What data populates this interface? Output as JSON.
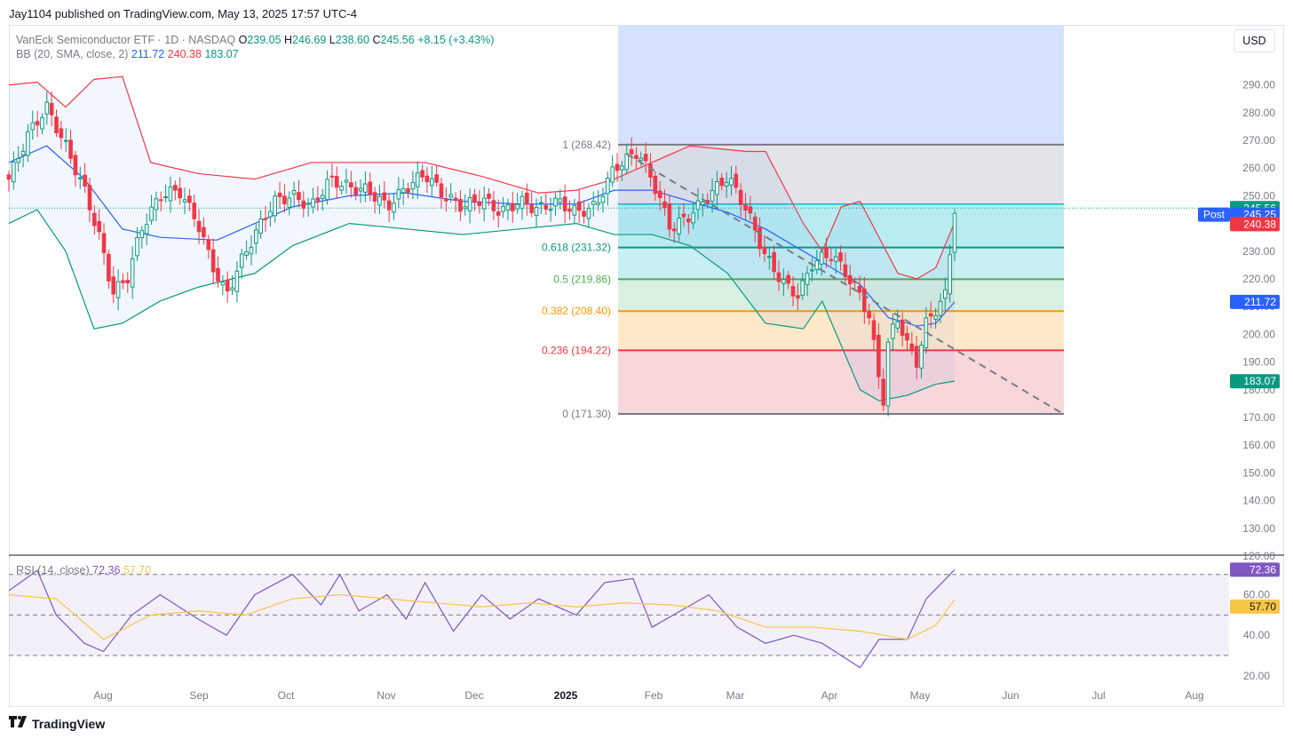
{
  "header": {
    "published": "Jay1104 published on TradingView.com, May 13, 2025 17:57 UTC-4",
    "currency_button": "USD"
  },
  "legend": {
    "symbol": "VanEck Semiconductor ETF · 1D · NASDAQ",
    "open_label": "O",
    "open": "239.05",
    "high_label": "H",
    "high": "246.69",
    "low_label": "L",
    "low": "238.60",
    "close_label": "C",
    "close": "245.56",
    "change": "+8.15 (+3.43%)",
    "bb_label": "BB (20, SMA, close, 2)",
    "bb_basis": "211.72",
    "bb_upper": "240.38",
    "bb_lower": "183.07"
  },
  "rsi_legend": {
    "label": "RSI (14, close)",
    "rsi": "72.36",
    "ma": "57.70"
  },
  "footer": {
    "brand": "TradingView"
  },
  "colors": {
    "up": "#089981",
    "down": "#f23645",
    "bb_basis": "#2962ff",
    "bb_upper": "#f23645",
    "bb_lower": "#089981",
    "rsi": "#7e57c2",
    "rsi_ma": "#f7c548",
    "post": "#2962ff"
  },
  "chart_data": [
    {
      "type": "candlestick",
      "title": "VanEck Semiconductor ETF · 1D · NASDAQ",
      "y_ticks": [
        120,
        130,
        140,
        150,
        160,
        170,
        180,
        190,
        200,
        210,
        220,
        230,
        240,
        250,
        260,
        270,
        280,
        290
      ],
      "ylim": [
        115,
        297
      ],
      "x_ticks": [
        "Aug",
        "Sep",
        "Oct",
        "Nov",
        "Dec",
        "2025",
        "Feb",
        "Mar",
        "Apr",
        "May",
        "Jun",
        "Jul",
        "Aug"
      ],
      "price_badges": [
        {
          "label": "",
          "value": "245.56",
          "color": "#089981"
        },
        {
          "label": "Post",
          "value": "245.25",
          "color": "#2962ff"
        },
        {
          "label": "",
          "value": "240.38",
          "color": "#f23645"
        },
        {
          "label": "",
          "value": "211.72",
          "color": "#2962ff"
        },
        {
          "label": "",
          "value": "183.07",
          "color": "#089981"
        }
      ],
      "fibonacci": [
        {
          "ratio": "1",
          "price": 268.42,
          "label": "1 (268.42)",
          "color": "#787b86"
        },
        {
          "ratio": "0.618",
          "price": 231.32,
          "label": "0.618 (231.32)",
          "color": "#089981"
        },
        {
          "ratio": "0.5",
          "price": 219.86,
          "label": "0.5 (219.86)",
          "color": "#4caf50"
        },
        {
          "ratio": "0.382",
          "price": 208.4,
          "label": "0.382 (208.40)",
          "color": "#ff9800"
        },
        {
          "ratio": "0.236",
          "price": 194.22,
          "label": "0.236 (194.22)",
          "color": "#f23645"
        },
        {
          "ratio": "0",
          "price": 171.3,
          "label": "0 (171.30)",
          "color": "#787b86"
        }
      ],
      "price_path": [
        [
          0,
          256
        ],
        [
          0.02,
          272
        ],
        [
          0.04,
          282
        ],
        [
          0.06,
          268
        ],
        [
          0.08,
          252
        ],
        [
          0.095,
          236
        ],
        [
          0.11,
          215
        ],
        [
          0.125,
          220
        ],
        [
          0.14,
          238
        ],
        [
          0.16,
          250
        ],
        [
          0.18,
          252
        ],
        [
          0.2,
          240
        ],
        [
          0.215,
          225
        ],
        [
          0.23,
          214
        ],
        [
          0.245,
          226
        ],
        [
          0.26,
          236
        ],
        [
          0.28,
          248
        ],
        [
          0.3,
          250
        ],
        [
          0.32,
          246
        ],
        [
          0.34,
          256
        ],
        [
          0.36,
          253
        ],
        [
          0.38,
          252
        ],
        [
          0.4,
          246
        ],
        [
          0.42,
          253
        ],
        [
          0.44,
          258
        ],
        [
          0.46,
          250
        ],
        [
          0.48,
          246
        ],
        [
          0.5,
          249
        ],
        [
          0.52,
          244
        ],
        [
          0.54,
          248
        ],
        [
          0.56,
          245
        ],
        [
          0.58,
          248
        ],
        [
          0.6,
          244
        ],
        [
          0.62,
          246
        ],
        [
          0.64,
          260
        ],
        [
          0.665,
          266
        ],
        [
          0.68,
          256
        ],
        [
          0.7,
          238
        ],
        [
          0.72,
          243
        ],
        [
          0.74,
          250
        ],
        [
          0.76,
          257
        ],
        [
          0.78,
          245
        ],
        [
          0.8,
          228
        ],
        [
          0.82,
          218
        ],
        [
          0.835,
          214
        ],
        [
          0.85,
          226
        ],
        [
          0.87,
          229
        ],
        [
          0.885,
          222
        ],
        [
          0.9,
          214
        ],
        [
          0.91,
          206
        ],
        [
          0.92,
          184
        ],
        [
          0.925,
          176
        ],
        [
          0.93,
          198
        ],
        [
          0.94,
          206
        ],
        [
          0.95,
          196
        ],
        [
          0.96,
          190
        ],
        [
          0.97,
          204
        ],
        [
          0.98,
          209
        ],
        [
          0.99,
          214
        ],
        [
          1.0,
          245.5
        ]
      ],
      "bollinger": {
        "upper": [
          [
            0,
            290
          ],
          [
            0.03,
            291
          ],
          [
            0.06,
            282
          ],
          [
            0.09,
            292
          ],
          [
            0.12,
            293
          ],
          [
            0.15,
            262
          ],
          [
            0.2,
            258
          ],
          [
            0.26,
            256
          ],
          [
            0.32,
            262
          ],
          [
            0.38,
            262
          ],
          [
            0.44,
            262
          ],
          [
            0.5,
            257
          ],
          [
            0.56,
            251
          ],
          [
            0.6,
            252
          ],
          [
            0.64,
            256
          ],
          [
            0.68,
            262
          ],
          [
            0.72,
            268
          ],
          [
            0.78,
            266
          ],
          [
            0.8,
            266
          ],
          [
            0.84,
            240
          ],
          [
            0.86,
            230
          ],
          [
            0.88,
            246
          ],
          [
            0.9,
            248
          ],
          [
            0.94,
            222
          ],
          [
            0.96,
            220
          ],
          [
            0.98,
            224
          ],
          [
            1.0,
            240.4
          ]
        ],
        "basis": [
          [
            0,
            262
          ],
          [
            0.04,
            268
          ],
          [
            0.08,
            256
          ],
          [
            0.12,
            238
          ],
          [
            0.16,
            235
          ],
          [
            0.22,
            234
          ],
          [
            0.3,
            246
          ],
          [
            0.36,
            250
          ],
          [
            0.42,
            251
          ],
          [
            0.48,
            248
          ],
          [
            0.54,
            247
          ],
          [
            0.6,
            247
          ],
          [
            0.64,
            252
          ],
          [
            0.68,
            252
          ],
          [
            0.72,
            248
          ],
          [
            0.76,
            244
          ],
          [
            0.8,
            238
          ],
          [
            0.84,
            230
          ],
          [
            0.88,
            222
          ],
          [
            0.9,
            218
          ],
          [
            0.93,
            206
          ],
          [
            0.96,
            203
          ],
          [
            0.98,
            204
          ],
          [
            1.0,
            211.7
          ]
        ],
        "lower": [
          [
            0,
            240
          ],
          [
            0.03,
            245
          ],
          [
            0.06,
            230
          ],
          [
            0.09,
            202
          ],
          [
            0.12,
            204
          ],
          [
            0.16,
            212
          ],
          [
            0.2,
            217
          ],
          [
            0.26,
            222
          ],
          [
            0.3,
            232
          ],
          [
            0.36,
            240
          ],
          [
            0.42,
            238
          ],
          [
            0.48,
            236
          ],
          [
            0.54,
            238
          ],
          [
            0.6,
            240
          ],
          [
            0.64,
            236
          ],
          [
            0.68,
            236
          ],
          [
            0.72,
            232
          ],
          [
            0.76,
            222
          ],
          [
            0.8,
            204
          ],
          [
            0.84,
            202
          ],
          [
            0.86,
            212
          ],
          [
            0.88,
            196
          ],
          [
            0.9,
            180
          ],
          [
            0.92,
            176
          ],
          [
            0.95,
            178
          ],
          [
            0.98,
            182
          ],
          [
            1.0,
            183.1
          ]
        ]
      }
    },
    {
      "type": "line",
      "title": "RSI (14, close)",
      "y_ticks": [
        20,
        40,
        60
      ],
      "levels": [
        70,
        50,
        30
      ],
      "ylim": [
        16,
        78
      ],
      "series": [
        {
          "name": "RSI (14, close)",
          "values": [
            [
              0,
              62
            ],
            [
              0.03,
              72
            ],
            [
              0.05,
              50
            ],
            [
              0.08,
              36
            ],
            [
              0.1,
              32
            ],
            [
              0.13,
              50
            ],
            [
              0.16,
              60
            ],
            [
              0.2,
              48
            ],
            [
              0.23,
              40
            ],
            [
              0.26,
              60
            ],
            [
              0.3,
              70
            ],
            [
              0.33,
              55
            ],
            [
              0.35,
              70
            ],
            [
              0.37,
              52
            ],
            [
              0.4,
              60
            ],
            [
              0.42,
              48
            ],
            [
              0.44,
              66
            ],
            [
              0.47,
              42
            ],
            [
              0.5,
              60
            ],
            [
              0.53,
              48
            ],
            [
              0.56,
              58
            ],
            [
              0.6,
              50
            ],
            [
              0.63,
              66
            ],
            [
              0.66,
              68
            ],
            [
              0.68,
              44
            ],
            [
              0.71,
              52
            ],
            [
              0.74,
              60
            ],
            [
              0.77,
              44
            ],
            [
              0.8,
              36
            ],
            [
              0.83,
              40
            ],
            [
              0.86,
              36
            ],
            [
              0.88,
              30
            ],
            [
              0.9,
              24
            ],
            [
              0.92,
              38
            ],
            [
              0.95,
              38
            ],
            [
              0.97,
              58
            ],
            [
              1.0,
              72.4
            ]
          ]
        },
        {
          "name": "MA",
          "values": [
            [
              0,
              60
            ],
            [
              0.05,
              58
            ],
            [
              0.1,
              38
            ],
            [
              0.15,
              50
            ],
            [
              0.2,
              52
            ],
            [
              0.25,
              50
            ],
            [
              0.3,
              58
            ],
            [
              0.35,
              60
            ],
            [
              0.4,
              58
            ],
            [
              0.45,
              56
            ],
            [
              0.5,
              54
            ],
            [
              0.55,
              56
            ],
            [
              0.6,
              54
            ],
            [
              0.65,
              56
            ],
            [
              0.7,
              55
            ],
            [
              0.75,
              52
            ],
            [
              0.8,
              44
            ],
            [
              0.85,
              44
            ],
            [
              0.9,
              42
            ],
            [
              0.95,
              38
            ],
            [
              0.98,
              45
            ],
            [
              1.0,
              57.7
            ]
          ]
        }
      ]
    }
  ]
}
